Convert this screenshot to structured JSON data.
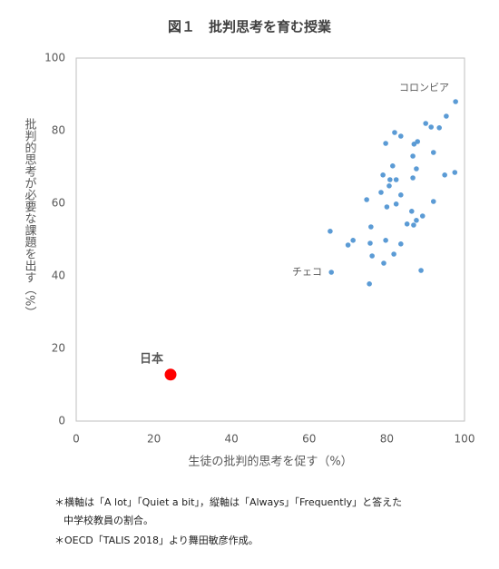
{
  "chart_data": {
    "type": "scatter",
    "title": "図１　批判思考を育む授業",
    "x_label": "生徒の批判的思考を促す（%）",
    "y_label": "批判的思考が必要な課題を出す（%）",
    "xlim": [
      0,
      100
    ],
    "xticks": [
      0,
      20,
      40,
      60,
      80,
      100
    ],
    "ylim": [
      0,
      100
    ],
    "yticks": [
      0,
      20,
      40,
      60,
      80,
      100
    ],
    "grid": false,
    "series": [
      {
        "color": "#5b9bd5",
        "x": [
          97.7,
          95.3,
          90,
          91.4,
          93.5,
          82,
          83.6,
          87.9,
          87,
          79.7,
          92,
          86.7,
          97.5,
          94.9,
          87.6,
          81.5,
          79,
          80.8,
          82.4,
          86.7,
          80.6,
          83.6,
          78.5,
          74.8,
          92,
          82.4,
          80,
          86.4,
          89.2,
          87.6,
          85.2,
          86.9,
          75.9,
          65.4,
          71.3,
          70,
          75.7,
          79.7,
          83.6,
          81.8,
          76.2,
          79.2,
          88.8,
          65.7,
          75.5
        ],
        "values": [
          88,
          84,
          82,
          81,
          80.8,
          79.5,
          78.5,
          77,
          76.3,
          76.5,
          74,
          73,
          68.5,
          67.8,
          69.5,
          70.3,
          67.8,
          66.5,
          66.5,
          67,
          64.8,
          62.3,
          63,
          61,
          60.5,
          59.8,
          59,
          57.8,
          56.5,
          55.3,
          54.3,
          54,
          53.5,
          52.3,
          49.8,
          48.5,
          49,
          49.8,
          48.8,
          46,
          45.5,
          43.5,
          41.5,
          41,
          37.8
        ]
      },
      {
        "name": "日本",
        "color": "#ff0000",
        "x": [
          24.3
        ],
        "values": [
          12.8
        ]
      }
    ],
    "annotations": [
      "コロンビア",
      "チェコ"
    ],
    "notes": [
      "＊横軸は「A lot」「Quiet a bit」，縦軸は「Always」「Frequently」と答えた",
      "中学校教員の割合。",
      "＊OECD「TALIS 2018」より舞田敏彦作成。"
    ]
  }
}
